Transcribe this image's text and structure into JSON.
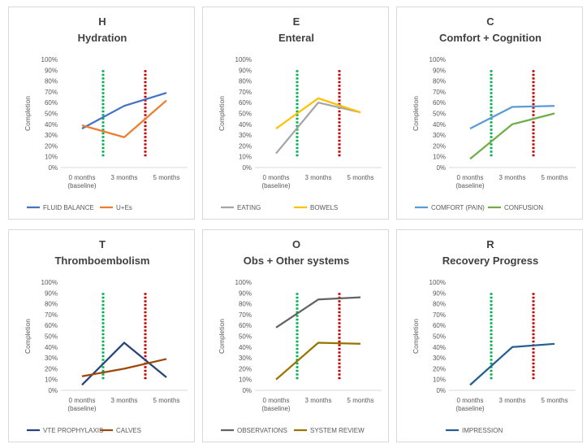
{
  "chart_data": [
    {
      "type": "line",
      "letter": "H",
      "title": "Hydration",
      "ylabel": "Completion",
      "yticks": [
        "0%",
        "10%",
        "20%",
        "30%",
        "40%",
        "50%",
        "60%",
        "70%",
        "80%",
        "90%",
        "100%"
      ],
      "ylim": [
        0,
        100
      ],
      "categories": [
        "0 months (baseline)",
        "3 months",
        "5 months"
      ],
      "category_lines": [
        [
          "0 months",
          "(baseline)"
        ],
        [
          "3 months"
        ],
        [
          "5 months"
        ]
      ],
      "markers": [
        {
          "at": 1.5,
          "color": "#00b050"
        },
        {
          "at": 2.5,
          "color": "#c00000"
        }
      ],
      "series": [
        {
          "name": "FLUID BALANCE",
          "color": "#4472c4",
          "values": [
            36,
            57,
            69
          ]
        },
        {
          "name": "U+Es",
          "color": "#ed7d31",
          "values": [
            39,
            28,
            62
          ]
        }
      ]
    },
    {
      "type": "line",
      "letter": "E",
      "title": "Enteral",
      "ylabel": "Completion",
      "yticks": [
        "0%",
        "10%",
        "20%",
        "30%",
        "40%",
        "50%",
        "60%",
        "70%",
        "80%",
        "90%",
        "100%"
      ],
      "ylim": [
        0,
        100
      ],
      "categories": [
        "0 months (baseline)",
        "3 months",
        "5 months"
      ],
      "category_lines": [
        [
          "0 months",
          "(baseline)"
        ],
        [
          "3 months"
        ],
        [
          "5 months"
        ]
      ],
      "markers": [
        {
          "at": 1.5,
          "color": "#00b050"
        },
        {
          "at": 2.5,
          "color": "#c00000"
        }
      ],
      "series": [
        {
          "name": "EATING",
          "color": "#a5a5a5",
          "values": [
            13,
            60,
            51
          ]
        },
        {
          "name": "BOWELS",
          "color": "#ffc000",
          "values": [
            36,
            64,
            51
          ]
        }
      ]
    },
    {
      "type": "line",
      "letter": "C",
      "title": "Comfort + Cognition",
      "ylabel": "Completion",
      "yticks": [
        "0%",
        "10%",
        "20%",
        "30%",
        "40%",
        "50%",
        "60%",
        "70%",
        "80%",
        "90%",
        "100%"
      ],
      "ylim": [
        0,
        100
      ],
      "categories": [
        "0 months (baseline)",
        "3 months",
        "5 months"
      ],
      "category_lines": [
        [
          "0 months",
          "(baseline)"
        ],
        [
          "3 months"
        ],
        [
          "5 months"
        ]
      ],
      "markers": [
        {
          "at": 1.5,
          "color": "#00b050"
        },
        {
          "at": 2.5,
          "color": "#c00000"
        }
      ],
      "series": [
        {
          "name": "COMFORT (PAIN)",
          "color": "#5b9bd5",
          "values": [
            36,
            56,
            57
          ]
        },
        {
          "name": "CONFUSION",
          "color": "#70ad47",
          "values": [
            8,
            40,
            50
          ]
        }
      ]
    },
    {
      "type": "line",
      "letter": "T",
      "title": "Thromboembolism",
      "ylabel": "Completion",
      "yticks": [
        "0%",
        "10%",
        "20%",
        "30%",
        "40%",
        "50%",
        "60%",
        "70%",
        "80%",
        "90%",
        "100%"
      ],
      "ylim": [
        0,
        100
      ],
      "categories": [
        "0 months (baseline)",
        "3 months",
        "5 months"
      ],
      "category_lines": [
        [
          "0 months",
          "(baseline)"
        ],
        [
          "3 months"
        ],
        [
          "5 months"
        ]
      ],
      "markers": [
        {
          "at": 1.5,
          "color": "#00b050"
        },
        {
          "at": 2.5,
          "color": "#c00000"
        }
      ],
      "series": [
        {
          "name": "VTE PROPHYLAXIS",
          "color": "#264478",
          "values": [
            5,
            44,
            12
          ]
        },
        {
          "name": "CALVES",
          "color": "#9e480e",
          "values": [
            13,
            20,
            29
          ]
        }
      ]
    },
    {
      "type": "line",
      "letter": "O",
      "title": "Obs + Other systems",
      "ylabel": "Completion",
      "yticks": [
        "0%",
        "10%",
        "20%",
        "30%",
        "40%",
        "50%",
        "60%",
        "70%",
        "80%",
        "90%",
        "100%"
      ],
      "ylim": [
        0,
        100
      ],
      "categories": [
        "0 months (baseline)",
        "3 months",
        "5 months"
      ],
      "category_lines": [
        [
          "0 months",
          "(baseline)"
        ],
        [
          "3 months"
        ],
        [
          "5 months"
        ]
      ],
      "markers": [
        {
          "at": 1.5,
          "color": "#00b050"
        },
        {
          "at": 2.5,
          "color": "#c00000"
        }
      ],
      "series": [
        {
          "name": "OBSERVATIONS",
          "color": "#636363",
          "values": [
            58,
            84,
            86
          ]
        },
        {
          "name": "SYSTEM REVIEW",
          "color": "#997300",
          "values": [
            10,
            44,
            43
          ]
        }
      ]
    },
    {
      "type": "line",
      "letter": "R",
      "title": "Recovery Progress",
      "ylabel": "Completion",
      "yticks": [
        "0%",
        "10%",
        "20%",
        "30%",
        "40%",
        "50%",
        "60%",
        "70%",
        "80%",
        "90%",
        "100%"
      ],
      "ylim": [
        0,
        100
      ],
      "categories": [
        "0 months (baseline)",
        "3 months",
        "5 months"
      ],
      "category_lines": [
        [
          "0 months",
          "(baseline)"
        ],
        [
          "3 months"
        ],
        [
          "5 months"
        ]
      ],
      "markers": [
        {
          "at": 1.5,
          "color": "#00b050"
        },
        {
          "at": 2.5,
          "color": "#c00000"
        }
      ],
      "series": [
        {
          "name": "IMPRESSION",
          "color": "#255e91",
          "values": [
            5,
            40,
            43
          ]
        }
      ]
    }
  ]
}
